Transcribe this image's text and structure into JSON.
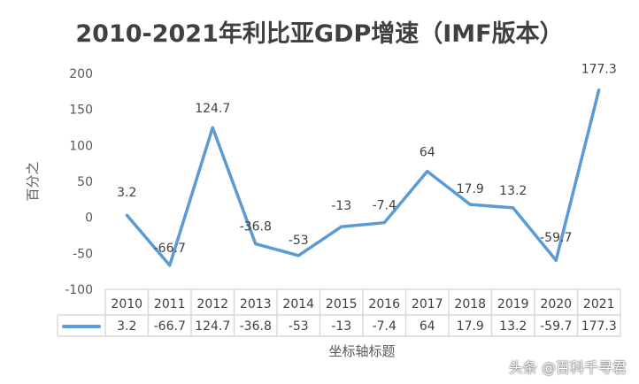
{
  "chart_data": {
    "type": "line",
    "title": "2010-2021年利比亚GDP增速（IMF版本）",
    "xlabel": "坐标轴标题",
    "ylabel": "百分之",
    "categories": [
      "2010",
      "2011",
      "2012",
      "2013",
      "2014",
      "2015",
      "2016",
      "2017",
      "2018",
      "2019",
      "2020",
      "2021"
    ],
    "series": [
      {
        "values": [
          3.2,
          -66.7,
          124.7,
          -36.8,
          -53,
          -13,
          -7.4,
          64,
          17.9,
          13.2,
          -59.7,
          177.3
        ],
        "color": "#5b9bd5"
      }
    ],
    "ylim": [
      -100,
      200
    ],
    "yticks": [
      200,
      150,
      100,
      50,
      0,
      -50,
      -100
    ],
    "grid": false,
    "data_table": true,
    "data_labels": true
  },
  "watermark": "头条 @百科千寻君"
}
